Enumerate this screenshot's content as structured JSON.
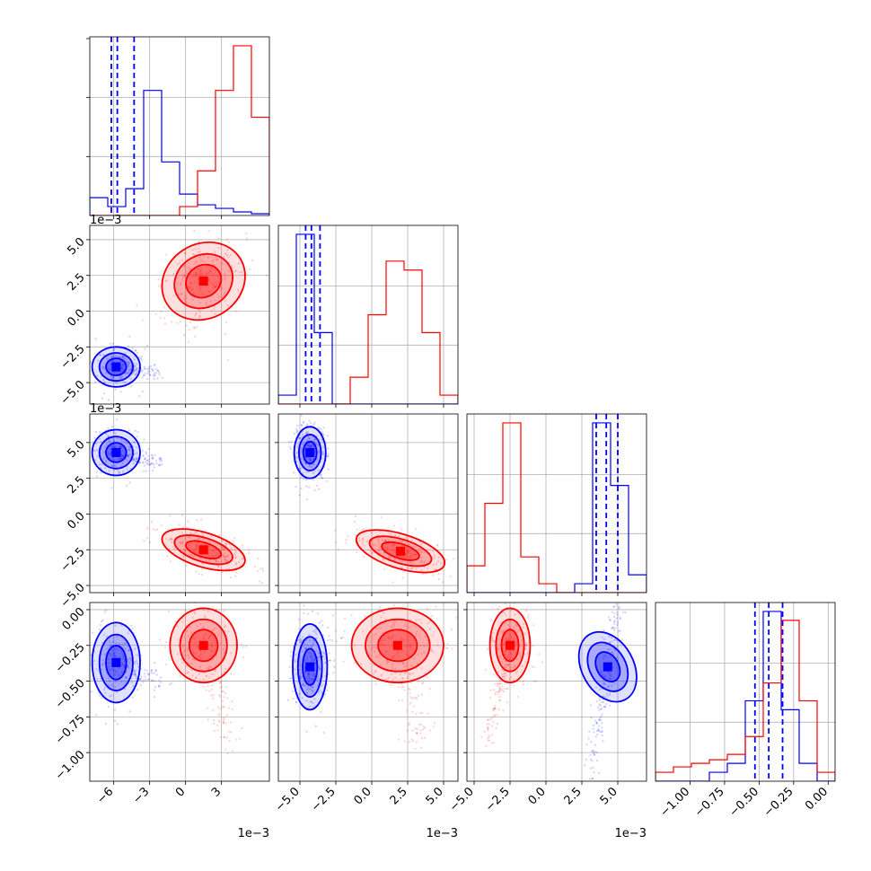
{
  "chart_data": {
    "type": "corner",
    "grid": true,
    "series": [
      {
        "color": "#0000ff"
      },
      {
        "color": "#ff0000"
      }
    ],
    "panels": {
      "p00": {
        "type": "histogram",
        "param": 0,
        "xlim": [
          -8.0,
          7.0
        ],
        "bins": [
          -8.0,
          -6.5,
          -5.0,
          -3.5,
          -2.0,
          -0.5,
          1.0,
          2.5,
          4.0,
          5.5,
          7.0
        ],
        "series": [
          {
            "counts": [
              0.1,
              0.05,
              0.15,
              0.7,
              0.3,
              0.12,
              0.06,
              0.04,
              0.02,
              0.01
            ]
          },
          {
            "counts": [
              0.0,
              0.0,
              0.0,
              0.0,
              0.0,
              0.05,
              0.25,
              0.7,
              0.95,
              0.55
            ]
          }
        ],
        "quantile_lines": [
          -6.2,
          -5.7,
          -4.3
        ]
      },
      "p11": {
        "type": "histogram",
        "param": 1,
        "xlim": [
          -6.5,
          6.0
        ],
        "bins": [
          -6.5,
          -5.25,
          -4.0,
          -2.75,
          -1.5,
          -0.25,
          1.0,
          2.25,
          3.5,
          4.75,
          6.0
        ],
        "series": [
          {
            "counts": [
              0.05,
              0.95,
              0.4,
              0.0,
              0.0,
              0.0,
              0.0,
              0.0,
              0.0,
              0.0
            ]
          },
          {
            "counts": [
              0.0,
              0.0,
              0.0,
              0.0,
              0.15,
              0.5,
              0.8,
              0.75,
              0.4,
              0.05
            ]
          }
        ],
        "quantile_lines": [
          -4.6,
          -4.2,
          -3.6
        ]
      },
      "p22": {
        "type": "histogram",
        "param": 2,
        "xlim": [
          -5.5,
          7.0
        ],
        "bins": [
          -5.5,
          -4.25,
          -3.0,
          -1.75,
          -0.5,
          0.75,
          2.0,
          3.25,
          4.5,
          5.75,
          7.0
        ],
        "series": [
          {
            "counts": [
              0.0,
              0.0,
              0.0,
              0.0,
              0.0,
              0.0,
              0.05,
              0.95,
              0.6,
              0.1
            ]
          },
          {
            "counts": [
              0.15,
              0.5,
              0.95,
              0.2,
              0.05,
              0.0,
              0.0,
              0.0,
              0.0,
              0.0
            ]
          }
        ],
        "quantile_lines": [
          3.5,
          4.2,
          5.0
        ]
      },
      "p33": {
        "type": "histogram",
        "param": 3,
        "xlim": [
          -1.25,
          0.05
        ],
        "bins": [
          -1.25,
          -1.12,
          -0.99,
          -0.86,
          -0.73,
          -0.6,
          -0.47,
          -0.34,
          -0.21,
          -0.08,
          0.05
        ],
        "series": [
          {
            "counts": [
              0.0,
              0.0,
              0.0,
              0.05,
              0.1,
              0.45,
              0.95,
              0.4,
              0.1,
              0.0
            ]
          },
          {
            "counts": [
              0.05,
              0.08,
              0.1,
              0.12,
              0.15,
              0.25,
              0.55,
              0.9,
              0.45,
              0.05
            ]
          }
        ],
        "quantile_lines": [
          -0.53,
          -0.43,
          -0.33
        ]
      },
      "p10": {
        "type": "contour",
        "xlim": [
          -8.0,
          7.0
        ],
        "ylim": [
          -6.5,
          6.0
        ],
        "series": [
          {
            "cx": -5.8,
            "cy": -3.9,
            "sx": 1.0,
            "sy": 0.7,
            "tail_x": -2.3,
            "tail_y": -4.3
          },
          {
            "cx": 1.5,
            "cy": 2.1,
            "sx": 1.8,
            "sy": 1.3,
            "rot": 0.55
          }
        ]
      },
      "p20": {
        "type": "contour",
        "xlim": [
          -8.0,
          7.0
        ],
        "ylim": [
          -5.5,
          7.0
        ],
        "series": [
          {
            "cx": -5.8,
            "cy": 4.3,
            "sx": 1.0,
            "sy": 0.8,
            "tail_x": -2.3,
            "tail_y": 3.6
          },
          {
            "cx": 1.5,
            "cy": -2.5,
            "sx": 1.8,
            "sy": 0.6,
            "rot": -0.3
          }
        ]
      },
      "p21": {
        "type": "contour",
        "xlim": [
          -6.5,
          6.0
        ],
        "ylim": [
          -5.5,
          7.0
        ],
        "series": [
          {
            "cx": -4.3,
            "cy": 4.3,
            "sx": 0.55,
            "sy": 0.9
          },
          {
            "cx": 2.0,
            "cy": -2.6,
            "sx": 1.6,
            "sy": 0.6,
            "rot": -0.3
          }
        ]
      },
      "p30": {
        "type": "contour",
        "xlim": [
          -8.0,
          7.0
        ],
        "ylim": [
          -1.2,
          0.05
        ],
        "series": [
          {
            "cx": -5.8,
            "cy": -0.37,
            "sx": 1.0,
            "sy": 0.14,
            "tail_x": -2.3,
            "tail_y": -0.5
          },
          {
            "cx": 1.5,
            "cy": -0.25,
            "sx": 1.4,
            "sy": 0.13,
            "tail_x": 3.8,
            "tail_y": -0.95
          }
        ]
      },
      "p31": {
        "type": "contour",
        "xlim": [
          -6.5,
          6.0
        ],
        "ylim": [
          -1.2,
          0.05
        ],
        "series": [
          {
            "cx": -4.3,
            "cy": -0.4,
            "sx": 0.6,
            "sy": 0.15
          },
          {
            "cx": 1.8,
            "cy": -0.25,
            "sx": 1.6,
            "sy": 0.13,
            "tail_x": 3.3,
            "tail_y": -0.95
          }
        ]
      },
      "p32": {
        "type": "contour",
        "xlim": [
          -5.5,
          7.0
        ],
        "ylim": [
          -1.2,
          0.05
        ],
        "series": [
          {
            "cx": 4.3,
            "cy": -0.4,
            "sx": 0.9,
            "sy": 0.13,
            "rot": 0.5
          },
          {
            "cx": -2.5,
            "cy": -0.25,
            "sx": 0.7,
            "sy": 0.13,
            "tail_x": -4.2,
            "tail_y": -0.95
          }
        ]
      }
    },
    "axes": {
      "x_bottom": [
        {
          "ticks": [
            -6,
            -3,
            0,
            3
          ],
          "tick_labels": [
            "−6",
            "−3",
            "0",
            "3"
          ],
          "offset_label": "1e−3"
        },
        {
          "ticks": [
            -5.0,
            -2.5,
            0.0,
            2.5,
            5.0
          ],
          "tick_labels": [
            "−5.0",
            "−2.5",
            "0.0",
            "2.5",
            "5.0"
          ],
          "offset_label": "1e−3"
        },
        {
          "ticks": [
            -5.0,
            -2.5,
            0.0,
            2.5,
            5.0
          ],
          "tick_labels": [
            "−5.0",
            "−2.5",
            "0.0",
            "2.5",
            "5.0"
          ],
          "offset_label": "1e−3"
        },
        {
          "ticks": [
            -1.0,
            -0.75,
            -0.5,
            -0.25,
            0.0
          ],
          "tick_labels": [
            "−1.00",
            "−0.75",
            "−0.50",
            "−0.25",
            "0.00"
          ],
          "offset_label": ""
        }
      ],
      "y_left": [
        null,
        {
          "ticks": [
            5.0,
            2.5,
            0.0,
            -2.5,
            -5.0
          ],
          "tick_labels": [
            "5.0",
            "2.5",
            "0.0",
            "−2.5",
            "−5.0"
          ],
          "offset_label": "1e−3"
        },
        {
          "ticks": [
            5.0,
            2.5,
            0.0,
            -2.5,
            -5.0
          ],
          "tick_labels": [
            "5.0",
            "2.5",
            "0.0",
            "−2.5",
            "−5.0"
          ],
          "offset_label": "1e−3"
        },
        {
          "ticks": [
            0.0,
            -0.25,
            -0.5,
            -0.75,
            -1.0
          ],
          "tick_labels": [
            "0.00",
            "−0.25",
            "−0.50",
            "−0.75",
            "−1.00"
          ],
          "offset_label": ""
        }
      ]
    }
  }
}
